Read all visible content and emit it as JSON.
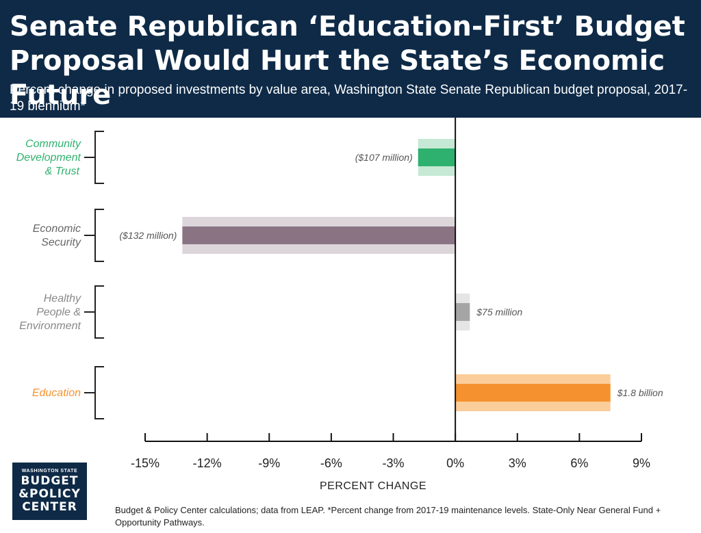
{
  "header": {
    "title": "Senate Republican ‘Education-First’ Budget Proposal Would Hurt the State’s Economic Future",
    "subtitle": "Percent change in proposed investments by value area, Washington State Senate Republican budget proposal, 2017-19 biennium*"
  },
  "chart_data": {
    "type": "bar",
    "orientation": "horizontal",
    "categories": [
      "Community Development & Trust",
      "Economic Security",
      "Healthy People & Environment",
      "Education"
    ],
    "values": [
      -1.8,
      -13.2,
      0.7,
      7.5
    ],
    "data_labels": [
      "($107 million)",
      "($132 million)",
      "$75 million",
      "$1.8 billion"
    ],
    "colors": {
      "dark": [
        "#2eb16e",
        "#8a7484",
        "#a5a5a5",
        "#f5922f"
      ],
      "light": [
        "#c5e9d4",
        "#dcd6da",
        "#e5e5e5",
        "#fbcd9a"
      ],
      "label": [
        "#2eb16e",
        "#666666",
        "#888888",
        "#f5922f"
      ]
    },
    "xlim": [
      -15,
      9
    ],
    "xticks": [
      -15,
      -12,
      -9,
      -6,
      -3,
      0,
      3,
      6,
      9
    ],
    "xtick_labels": [
      "-15%",
      "-12%",
      "-9%",
      "-6%",
      "-3%",
      "0%",
      "3%",
      "6%",
      "9%"
    ],
    "xlabel": "PERCENT CHANGE",
    "ylabel": "",
    "grid": false
  },
  "logo": {
    "line1": "WASHINGTON STATE",
    "line2": "BUDGET",
    "line3": "&POLICY",
    "line4": "CENTER"
  },
  "footer": {
    "source": "Budget & Policy Center calculations; data from LEAP. *Percent change from 2017-19 maintenance levels. State-Only Near General Fund + Opportunity Pathways."
  }
}
